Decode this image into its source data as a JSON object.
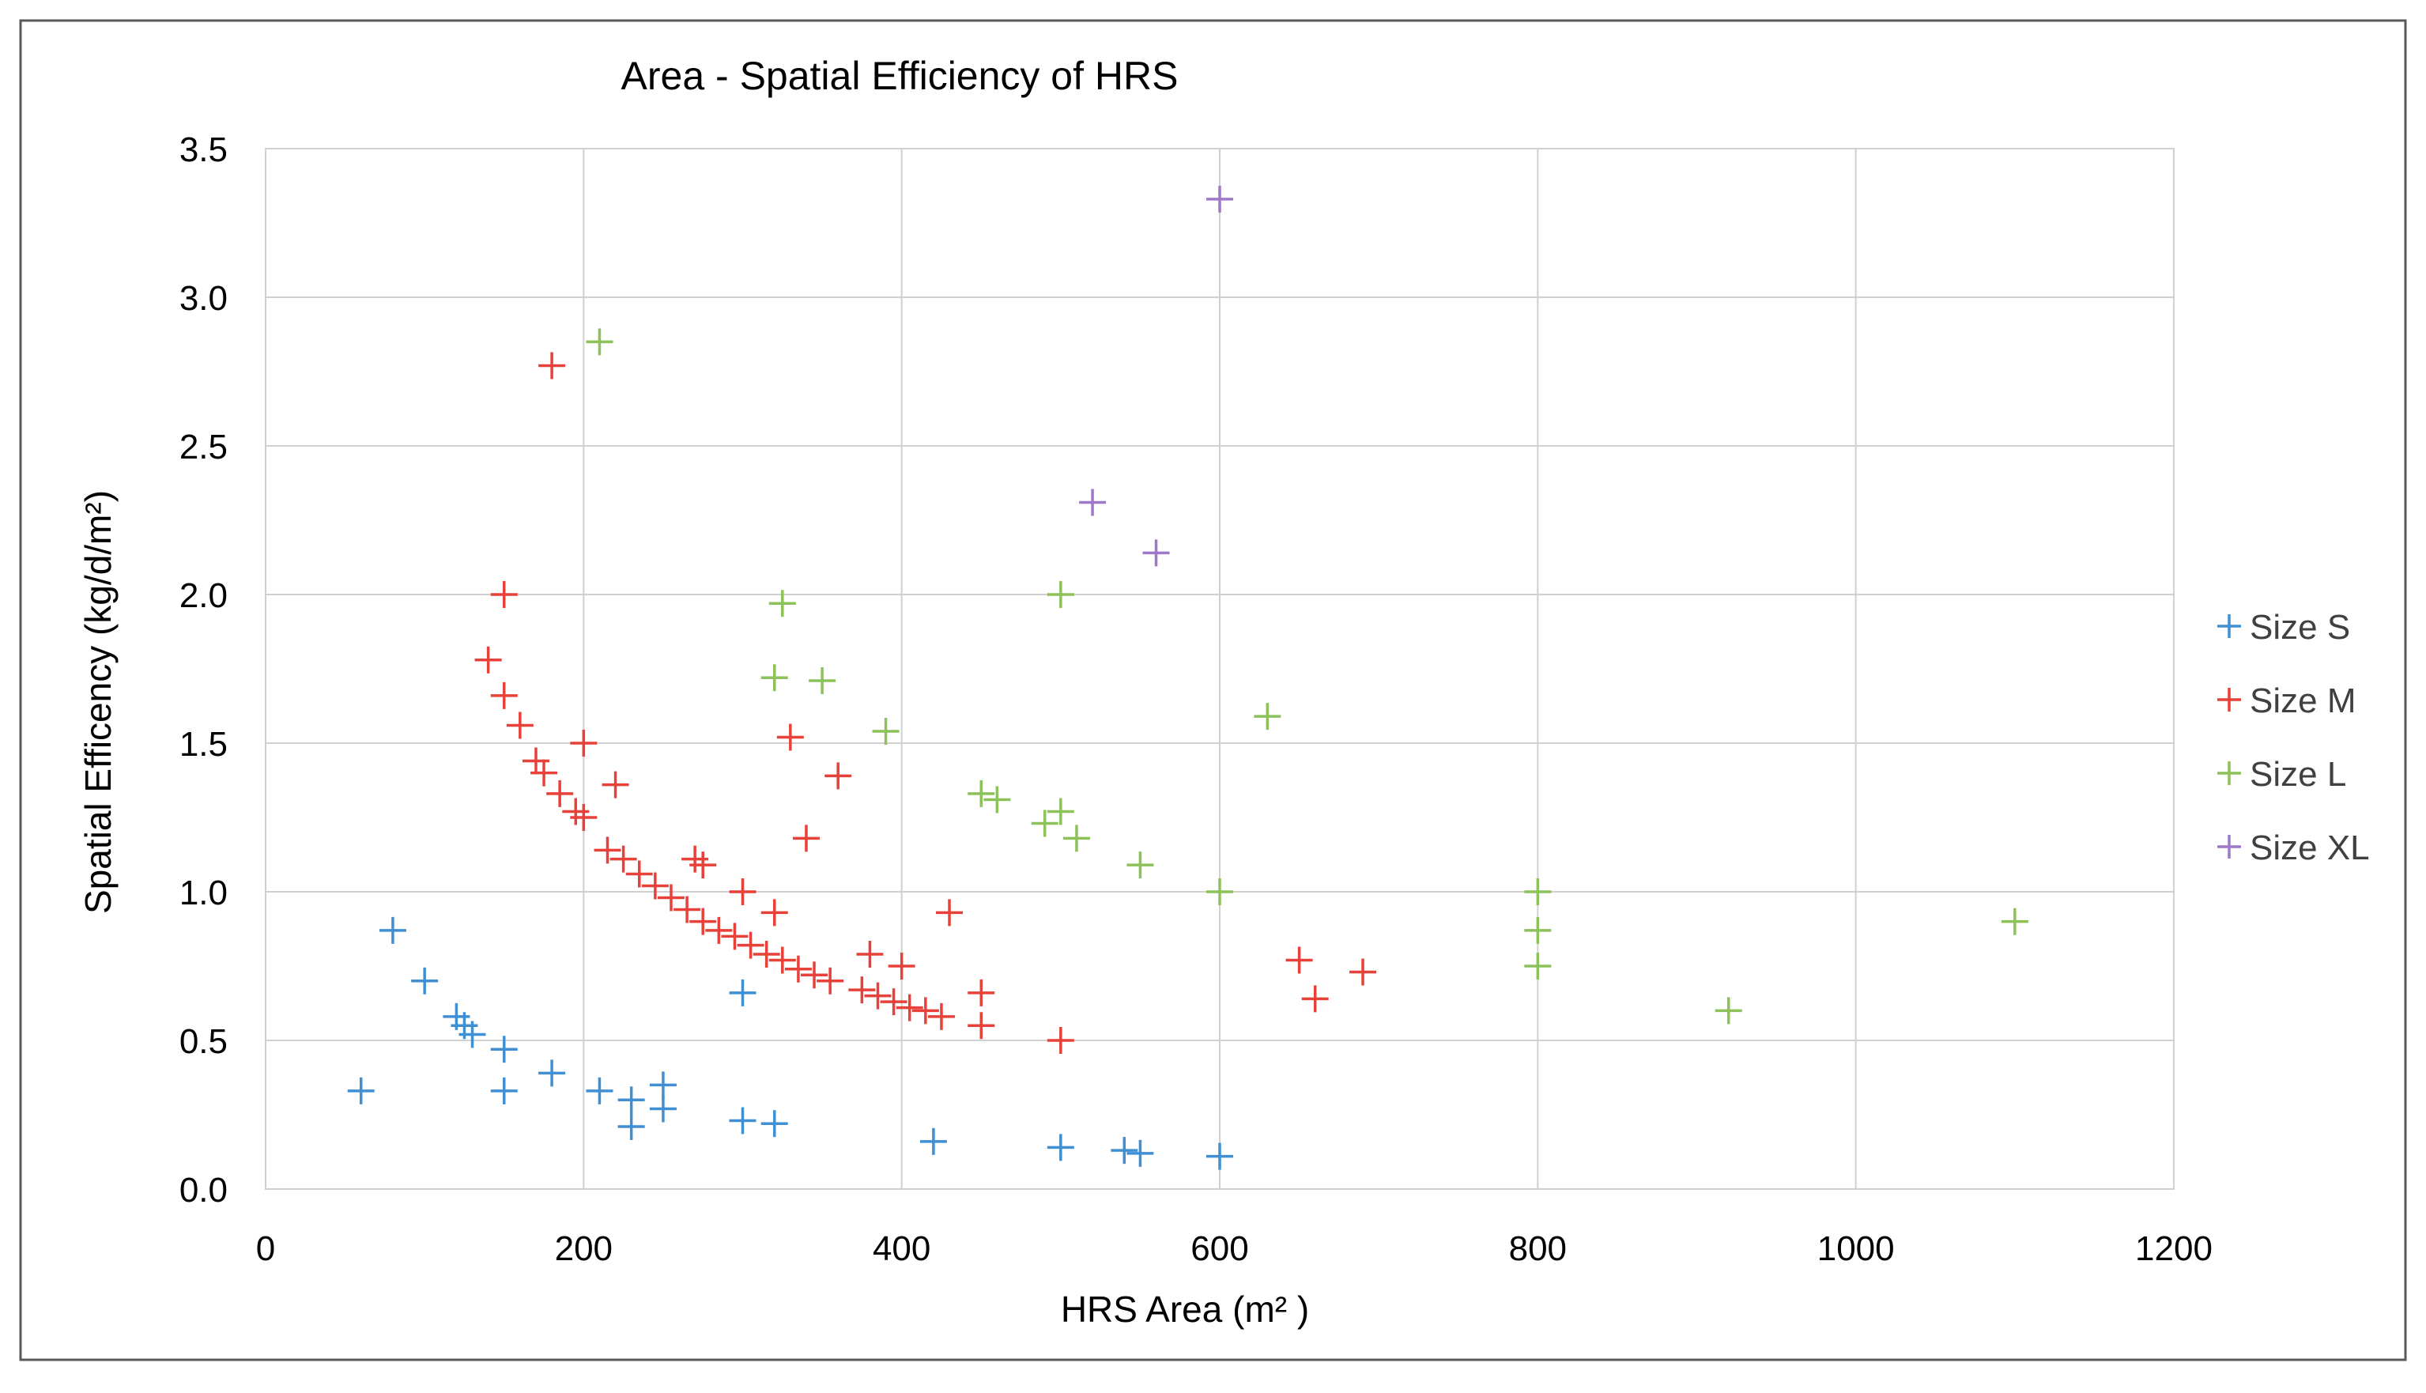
{
  "chart_data": {
    "type": "scatter",
    "title": "Area - Spatial Efficiency of HRS",
    "xlabel": "HRS Area (m² )",
    "ylabel": "Spatial Efficency (kg/d/m²)",
    "xlim": [
      0,
      1200
    ],
    "ylim": [
      0,
      3.5
    ],
    "x_ticks": [
      0,
      200,
      400,
      600,
      800,
      1000,
      1200
    ],
    "y_ticks": [
      0,
      0.5,
      1,
      1.5,
      2,
      2.5,
      3,
      3.5
    ],
    "x_tick_labels": [
      "0",
      "200",
      "400",
      "600",
      "800",
      "1000",
      "1200"
    ],
    "y_tick_labels": [
      "0.0",
      "0.5",
      "1.0",
      "1.5",
      "2.0",
      "2.5",
      "3.0",
      "3.5"
    ],
    "grid": true,
    "legend_position": "right",
    "marker": "plus",
    "series": [
      {
        "name": "Size S",
        "color": "#3f8fd2",
        "points": [
          [
            60,
            0.33
          ],
          [
            80,
            0.87
          ],
          [
            100,
            0.7
          ],
          [
            120,
            0.58
          ],
          [
            125,
            0.55
          ],
          [
            130,
            0.52
          ],
          [
            150,
            0.47
          ],
          [
            150,
            0.33
          ],
          [
            180,
            0.39
          ],
          [
            210,
            0.33
          ],
          [
            230,
            0.3
          ],
          [
            230,
            0.21
          ],
          [
            250,
            0.35
          ],
          [
            250,
            0.27
          ],
          [
            300,
            0.66
          ],
          [
            300,
            0.23
          ],
          [
            320,
            0.22
          ],
          [
            420,
            0.16
          ],
          [
            500,
            0.14
          ],
          [
            540,
            0.13
          ],
          [
            550,
            0.12
          ],
          [
            600,
            0.11
          ]
        ]
      },
      {
        "name": "Size M",
        "color": "#e8413a",
        "points": [
          [
            150,
            2.0
          ],
          [
            180,
            2.77
          ],
          [
            140,
            1.78
          ],
          [
            150,
            1.66
          ],
          [
            160,
            1.56
          ],
          [
            170,
            1.44
          ],
          [
            175,
            1.4
          ],
          [
            185,
            1.33
          ],
          [
            195,
            1.27
          ],
          [
            200,
            1.5
          ],
          [
            200,
            1.25
          ],
          [
            220,
            1.36
          ],
          [
            215,
            1.14
          ],
          [
            225,
            1.11
          ],
          [
            235,
            1.06
          ],
          [
            245,
            1.02
          ],
          [
            255,
            0.98
          ],
          [
            265,
            0.94
          ],
          [
            270,
            1.11
          ],
          [
            275,
            1.09
          ],
          [
            275,
            0.9
          ],
          [
            285,
            0.87
          ],
          [
            295,
            0.85
          ],
          [
            300,
            1.0
          ],
          [
            305,
            0.82
          ],
          [
            315,
            0.79
          ],
          [
            320,
            0.93
          ],
          [
            325,
            0.77
          ],
          [
            330,
            1.52
          ],
          [
            335,
            0.74
          ],
          [
            340,
            1.18
          ],
          [
            345,
            0.72
          ],
          [
            355,
            0.7
          ],
          [
            360,
            1.39
          ],
          [
            375,
            0.67
          ],
          [
            380,
            0.79
          ],
          [
            385,
            0.65
          ],
          [
            395,
            0.63
          ],
          [
            400,
            0.75
          ],
          [
            405,
            0.61
          ],
          [
            415,
            0.6
          ],
          [
            425,
            0.58
          ],
          [
            430,
            0.93
          ],
          [
            450,
            0.66
          ],
          [
            450,
            0.55
          ],
          [
            500,
            0.5
          ],
          [
            650,
            0.77
          ],
          [
            660,
            0.64
          ],
          [
            690,
            0.73
          ]
        ]
      },
      {
        "name": "Size L",
        "color": "#8dc15a",
        "points": [
          [
            210,
            2.85
          ],
          [
            325,
            1.97
          ],
          [
            320,
            1.72
          ],
          [
            350,
            1.71
          ],
          [
            390,
            1.54
          ],
          [
            450,
            1.33
          ],
          [
            460,
            1.31
          ],
          [
            490,
            1.23
          ],
          [
            500,
            1.27
          ],
          [
            500,
            2.0
          ],
          [
            510,
            1.18
          ],
          [
            550,
            1.09
          ],
          [
            600,
            1.0
          ],
          [
            630,
            1.59
          ],
          [
            800,
            1.0
          ],
          [
            800,
            0.87
          ],
          [
            800,
            0.75
          ],
          [
            920,
            0.6
          ],
          [
            1100,
            0.9
          ]
        ]
      },
      {
        "name": "Size XL",
        "color": "#9f79c9",
        "points": [
          [
            600,
            3.33
          ],
          [
            520,
            2.31
          ],
          [
            560,
            2.14
          ]
        ]
      }
    ]
  }
}
